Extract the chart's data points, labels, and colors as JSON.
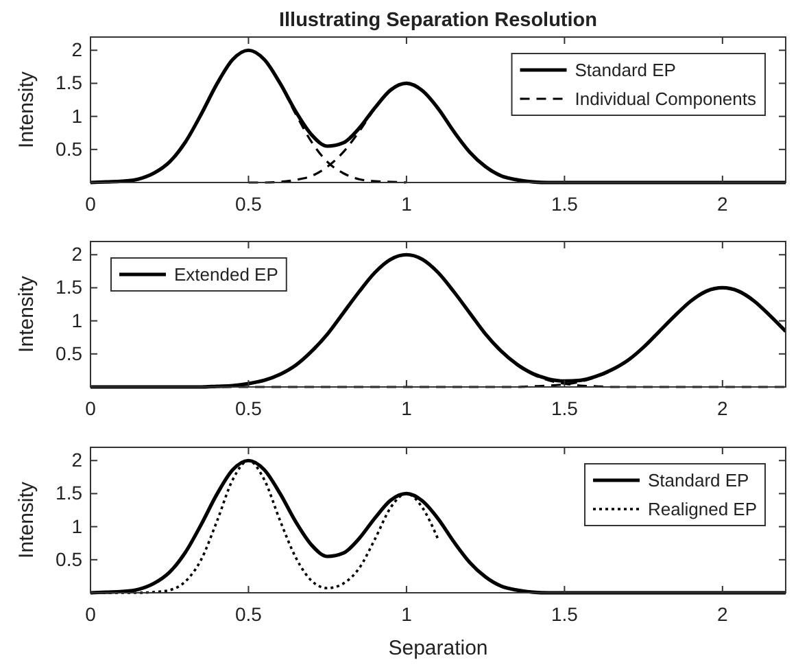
{
  "chart_data": [
    {
      "type": "line",
      "title": "Illustrating Separation Resolution",
      "ylabel": "Intensity",
      "xlim": [
        0,
        2.2
      ],
      "xticks": [
        0,
        0.5,
        1,
        1.5,
        2
      ],
      "ylim": [
        0,
        2.2
      ],
      "yticks": [
        0.5,
        1,
        1.5,
        2
      ],
      "legend": "top right",
      "series": [
        {
          "name": "Standard EP",
          "color": "#000000",
          "line_style": "solid",
          "x": [
            0,
            0.05,
            0.1,
            0.15,
            0.2,
            0.25,
            0.3,
            0.35,
            0.4,
            0.45,
            0.5,
            0.55,
            0.6,
            0.65,
            0.7,
            0.75,
            0.8,
            0.85,
            0.9,
            0.95,
            1,
            1.05,
            1.1,
            1.15,
            1.2,
            1.25,
            1.3,
            1.35,
            1.4,
            1.45,
            1.5,
            1.8,
            2.2
          ],
          "values": [
            0,
            0.01,
            0.02,
            0.05,
            0.14,
            0.31,
            0.61,
            1.03,
            1.49,
            1.86,
            2,
            1.86,
            1.5,
            1.07,
            0.72,
            0.55,
            0.6,
            0.82,
            1.13,
            1.4,
            1.5,
            1.39,
            1.12,
            0.77,
            0.46,
            0.24,
            0.1,
            0.04,
            0.01,
            0,
            0,
            0,
            0
          ]
        },
        {
          "name": "Individual Components",
          "color": "#000000",
          "line_style": "dashed",
          "x": [
            0,
            0.05,
            0.1,
            0.15,
            0.2,
            0.25,
            0.3,
            0.35,
            0.4,
            0.45,
            0.5,
            0.55,
            0.6,
            0.65,
            0.7,
            0.75,
            0.8,
            0.85,
            0.9,
            0.95,
            1
          ],
          "values": [
            0,
            0.01,
            0.02,
            0.05,
            0.14,
            0.31,
            0.61,
            1.03,
            1.49,
            1.86,
            2,
            1.86,
            1.49,
            1.03,
            0.61,
            0.31,
            0.14,
            0.05,
            0.02,
            0.01,
            0
          ]
        },
        {
          "color": "#000000",
          "line_style": "dashed",
          "x": [
            0.5,
            0.55,
            0.6,
            0.65,
            0.7,
            0.75,
            0.8,
            0.85,
            0.9,
            0.95,
            1,
            1.05,
            1.1,
            1.15,
            1.2,
            1.25,
            1.3,
            1.35,
            1.4,
            1.45,
            2.2
          ],
          "values": [
            0,
            0,
            0.01,
            0.04,
            0.1,
            0.24,
            0.46,
            0.77,
            1.12,
            1.39,
            1.5,
            1.39,
            1.12,
            0.77,
            0.46,
            0.24,
            0.1,
            0.04,
            0.01,
            0,
            0
          ]
        }
      ]
    },
    {
      "type": "line",
      "ylabel": "Intensity",
      "xlim": [
        0,
        2.2
      ],
      "xticks": [
        0,
        0.5,
        1,
        1.5,
        2
      ],
      "ylim": [
        0,
        2.2
      ],
      "yticks": [
        0.5,
        1,
        1.5,
        2
      ],
      "legend": "top left",
      "series": [
        {
          "color": "#000000",
          "line_style": "dashed",
          "x": [
            0,
            0.3,
            0.35,
            0.4,
            0.45,
            0.5,
            0.55,
            0.6,
            0.65,
            0.7,
            0.75,
            0.8,
            0.85,
            0.9,
            0.95,
            1,
            1.05,
            1.1,
            1.15,
            1.2,
            1.25,
            1.3,
            1.35,
            1.4,
            1.45,
            1.5,
            1.55,
            1.6,
            1.65,
            2.2
          ],
          "values": [
            0,
            0,
            0,
            0.01,
            0.02,
            0.05,
            0.1,
            0.19,
            0.33,
            0.54,
            0.8,
            1.12,
            1.44,
            1.73,
            1.93,
            2,
            1.93,
            1.73,
            1.44,
            1.12,
            0.8,
            0.54,
            0.33,
            0.19,
            0.1,
            0.05,
            0.02,
            0.01,
            0,
            0
          ]
        },
        {
          "color": "#000000",
          "line_style": "dashed",
          "x": [
            0,
            1.3,
            1.35,
            1.4,
            1.45,
            1.5,
            1.55,
            1.6,
            1.65,
            1.7,
            1.75,
            1.8,
            1.85,
            1.9,
            1.95,
            2,
            2.05,
            2.1,
            2.15,
            2.2
          ],
          "values": [
            0,
            0,
            0,
            0.01,
            0.02,
            0.04,
            0.08,
            0.15,
            0.25,
            0.4,
            0.6,
            0.84,
            1.08,
            1.3,
            1.45,
            1.5,
            1.45,
            1.3,
            1.08,
            0.84
          ]
        },
        {
          "name": "Extended EP",
          "color": "#000000",
          "line_style": "solid",
          "x": [
            0,
            0.2,
            0.3,
            0.35,
            0.4,
            0.45,
            0.5,
            0.55,
            0.6,
            0.65,
            0.7,
            0.75,
            0.8,
            0.85,
            0.9,
            0.95,
            1,
            1.05,
            1.1,
            1.15,
            1.2,
            1.25,
            1.3,
            1.35,
            1.4,
            1.45,
            1.5,
            1.55,
            1.6,
            1.65,
            1.7,
            1.75,
            1.8,
            1.85,
            1.9,
            1.95,
            2,
            2.05,
            2.1,
            2.15,
            2.2
          ],
          "values": [
            0,
            0,
            0,
            0,
            0.01,
            0.02,
            0.05,
            0.1,
            0.19,
            0.33,
            0.54,
            0.8,
            1.12,
            1.44,
            1.73,
            1.93,
            2,
            1.93,
            1.73,
            1.44,
            1.12,
            0.8,
            0.54,
            0.34,
            0.2,
            0.12,
            0.09,
            0.1,
            0.16,
            0.26,
            0.4,
            0.6,
            0.84,
            1.08,
            1.3,
            1.45,
            1.5,
            1.45,
            1.3,
            1.08,
            0.84
          ]
        }
      ]
    },
    {
      "type": "line",
      "xlabel": "Separation",
      "ylabel": "Intensity",
      "xlim": [
        0,
        2.2
      ],
      "xticks": [
        0,
        0.5,
        1,
        1.5,
        2
      ],
      "ylim": [
        0,
        2.2
      ],
      "yticks": [
        0.5,
        1,
        1.5,
        2
      ],
      "legend": "top right",
      "series": [
        {
          "name": "Standard EP",
          "color": "#000000",
          "line_style": "solid",
          "x": [
            0,
            0.05,
            0.1,
            0.15,
            0.2,
            0.25,
            0.3,
            0.35,
            0.4,
            0.45,
            0.5,
            0.55,
            0.6,
            0.65,
            0.7,
            0.75,
            0.8,
            0.85,
            0.9,
            0.95,
            1,
            1.05,
            1.1,
            1.15,
            1.2,
            1.25,
            1.3,
            1.35,
            1.4,
            1.45,
            1.5,
            1.8,
            2.2
          ],
          "values": [
            0,
            0.01,
            0.02,
            0.05,
            0.14,
            0.31,
            0.61,
            1.03,
            1.49,
            1.86,
            2,
            1.86,
            1.5,
            1.07,
            0.72,
            0.55,
            0.6,
            0.82,
            1.13,
            1.4,
            1.5,
            1.39,
            1.12,
            0.77,
            0.46,
            0.24,
            0.1,
            0.04,
            0.01,
            0,
            0,
            0,
            0
          ]
        },
        {
          "name": "Realigned EP",
          "color": "#000000",
          "line_style": "dotted",
          "x": [
            0,
            0.1,
            0.15,
            0.2,
            0.25,
            0.3,
            0.35,
            0.4,
            0.45,
            0.5,
            0.55,
            0.6,
            0.65,
            0.7,
            0.75,
            0.8,
            0.85,
            0.9,
            0.95,
            1,
            1.05,
            1.1
          ],
          "values": [
            0,
            0,
            0,
            0.01,
            0.04,
            0.17,
            0.5,
            1.08,
            1.71,
            2,
            1.71,
            1.09,
            0.53,
            0.18,
            0.07,
            0.14,
            0.37,
            0.81,
            1.29,
            1.5,
            1.29,
            0.81
          ]
        }
      ]
    }
  ]
}
